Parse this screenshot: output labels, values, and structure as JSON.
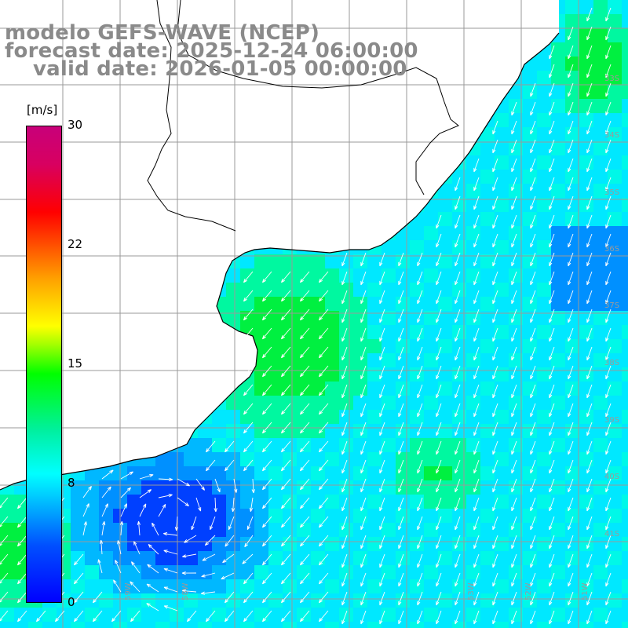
{
  "title": {
    "line1": "modelo GEFS-WAVE (NCEP)",
    "line2": "forecast date: 2025-12-24 06:00:00",
    "line3": "valid date: 2026-01-05 00:00:00"
  },
  "colorbar": {
    "unit": "[m/s]",
    "ticks": [
      "30",
      "22",
      "15",
      "8",
      "0"
    ],
    "colors": [
      "#0000ff",
      "#0050ff",
      "#00c8ff",
      "#00ffff",
      "#00f0a0",
      "#00ff00",
      "#a0ff00",
      "#ffff00",
      "#ffa000",
      "#ff5000",
      "#ff0000",
      "#c8007a"
    ]
  },
  "lat_labels": [
    "33S",
    "34S",
    "35S",
    "36S",
    "37S",
    "38S",
    "39S",
    "40S",
    "41S"
  ],
  "lon_labels": [
    "59W",
    "58W",
    "53W",
    "52W",
    "51W"
  ],
  "map": {
    "land_color": "#ffffff",
    "coastline_color": "#000000",
    "grid_color": "#9a9a9a",
    "arrow_color": "#ffffff"
  }
}
